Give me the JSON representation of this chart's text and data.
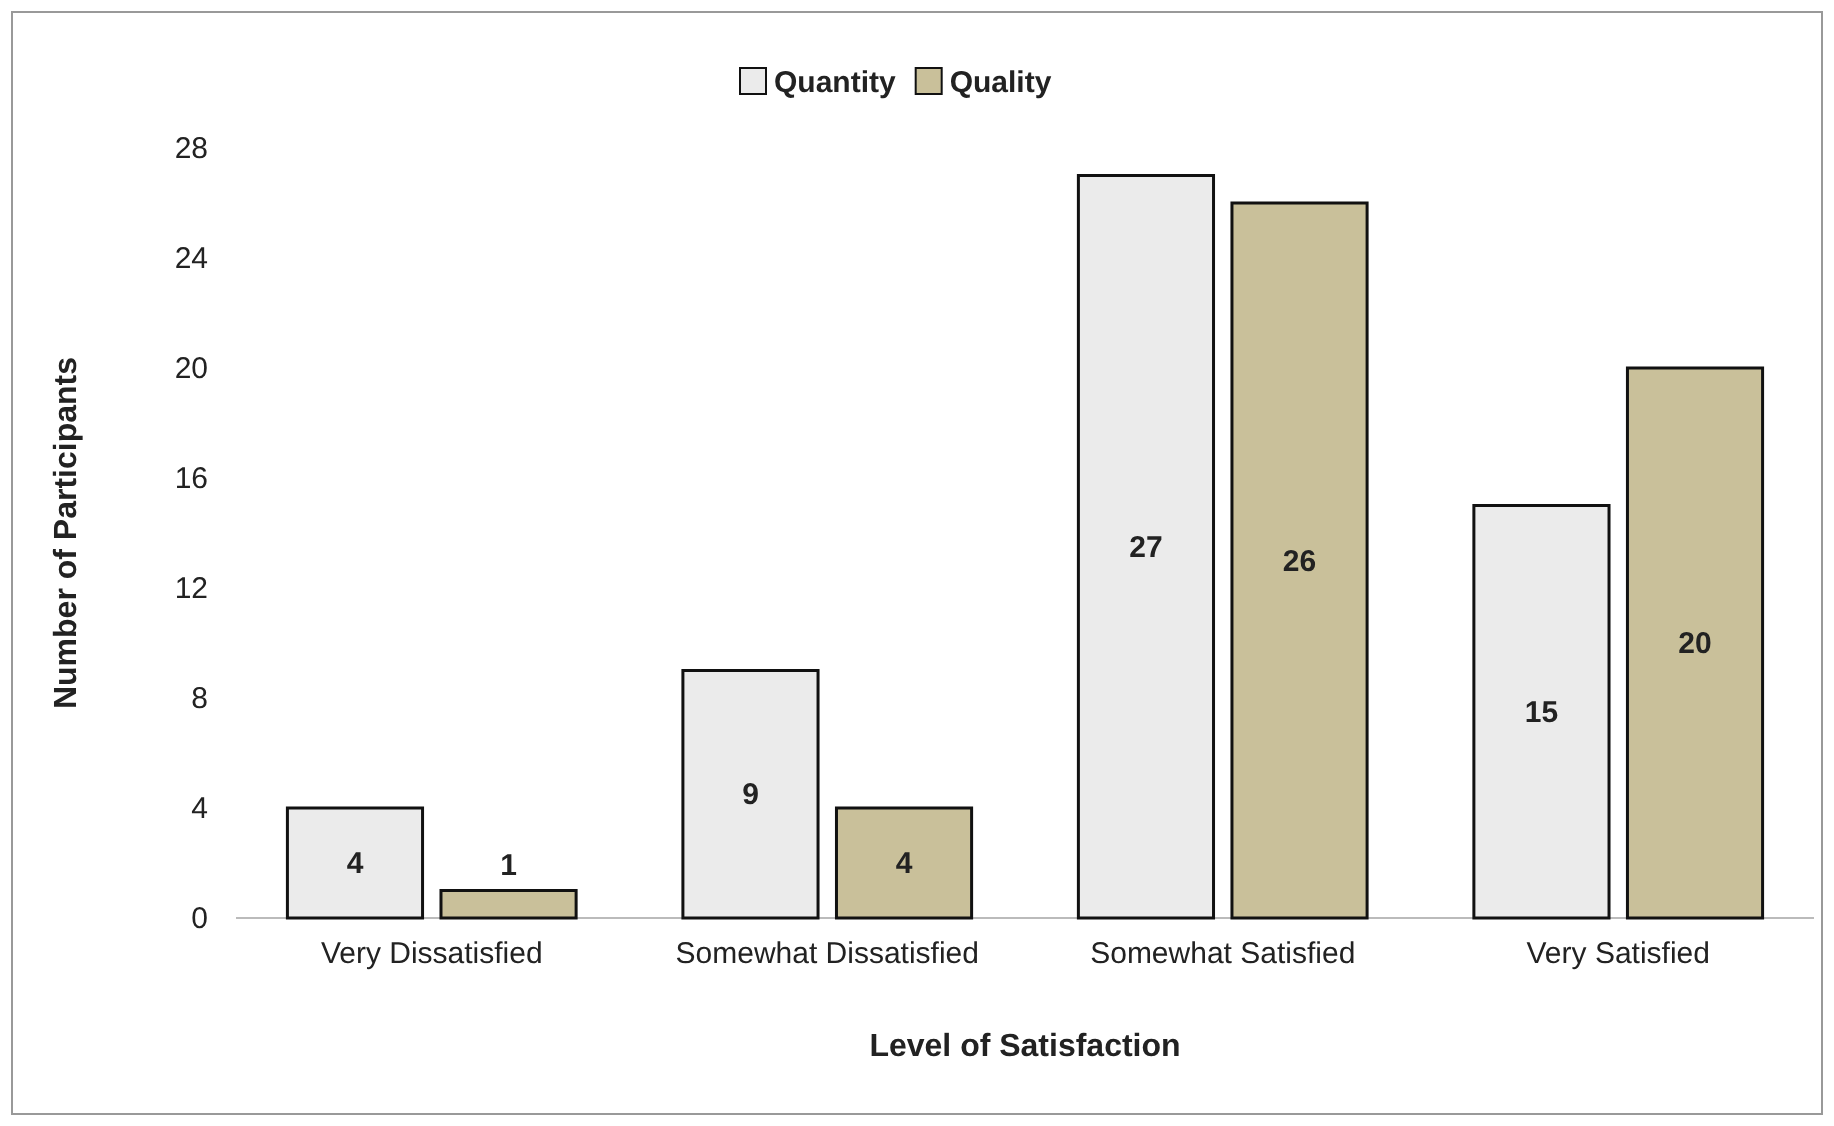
{
  "chart_data": {
    "type": "bar",
    "xlabel": "Level of Satisfaction",
    "ylabel": "Number of Participants",
    "categories": [
      "Very Dissatisfied",
      "Somewhat Dissatisfied",
      "Somewhat Satisfied",
      "Very Satisfied"
    ],
    "series": [
      {
        "name": "Quantity",
        "color": "#ebebeb",
        "values": [
          4,
          9,
          27,
          15
        ]
      },
      {
        "name": "Quality",
        "color": "#c9c09a",
        "values": [
          1,
          4,
          26,
          20
        ]
      }
    ],
    "ylim": [
      0,
      28
    ],
    "yticks": [
      0,
      4,
      8,
      12,
      16,
      20,
      24,
      28
    ],
    "grid": false,
    "legend": "top",
    "data_labels": true
  }
}
